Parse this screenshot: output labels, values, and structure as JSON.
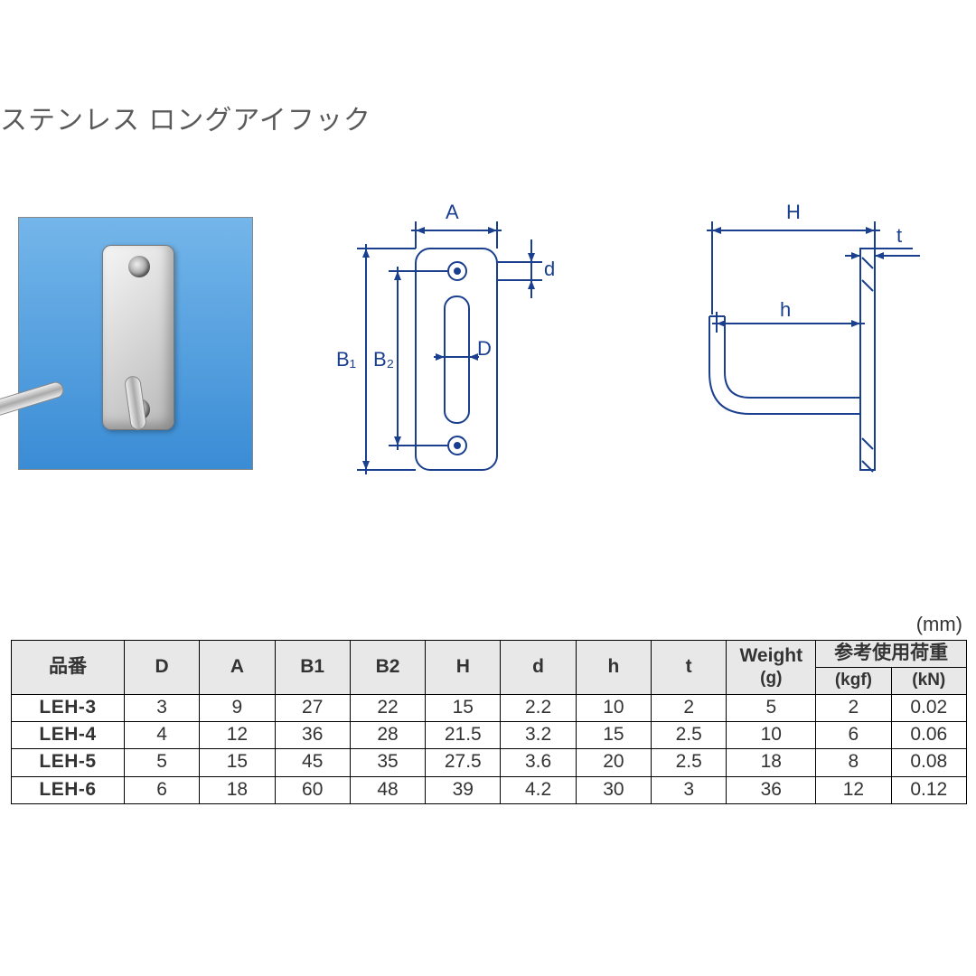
{
  "title": "ステンレス ロングアイフック",
  "unit": "(mm)",
  "diagram": {
    "stroke": "#1a3f8f",
    "stroke_width": 2,
    "labels": {
      "A": "A",
      "B1": "B₁",
      "B2": "B₂",
      "D": "D",
      "d": "d",
      "H": "H",
      "h": "h",
      "t": "t"
    }
  },
  "table": {
    "headers": {
      "part_no": "品番",
      "D": "D",
      "A": "A",
      "B1": "B1",
      "B2": "B2",
      "H": "H",
      "d": "d",
      "h": "h",
      "t": "t",
      "weight": "Weight",
      "weight_unit": "(g)",
      "ref_load": "参考使用荷重",
      "kgf": "(kgf)",
      "kN": "(kN)"
    },
    "rows": [
      {
        "pn": "LEH-3",
        "D": "3",
        "A": "9",
        "B1": "27",
        "B2": "22",
        "H": "15",
        "d": "2.2",
        "h": "10",
        "t": "2",
        "w": "5",
        "kgf": "2",
        "kN": "0.02"
      },
      {
        "pn": "LEH-4",
        "D": "4",
        "A": "12",
        "B1": "36",
        "B2": "28",
        "H": "21.5",
        "d": "3.2",
        "h": "15",
        "t": "2.5",
        "w": "10",
        "kgf": "6",
        "kN": "0.06"
      },
      {
        "pn": "LEH-5",
        "D": "5",
        "A": "15",
        "B1": "45",
        "B2": "35",
        "H": "27.5",
        "d": "3.6",
        "h": "20",
        "t": "2.5",
        "w": "18",
        "kgf": "8",
        "kN": "0.08"
      },
      {
        "pn": "LEH-6",
        "D": "6",
        "A": "18",
        "B1": "60",
        "B2": "48",
        "H": "39",
        "d": "4.2",
        "h": "30",
        "t": "3",
        "w": "36",
        "kgf": "12",
        "kN": "0.12"
      }
    ]
  }
}
